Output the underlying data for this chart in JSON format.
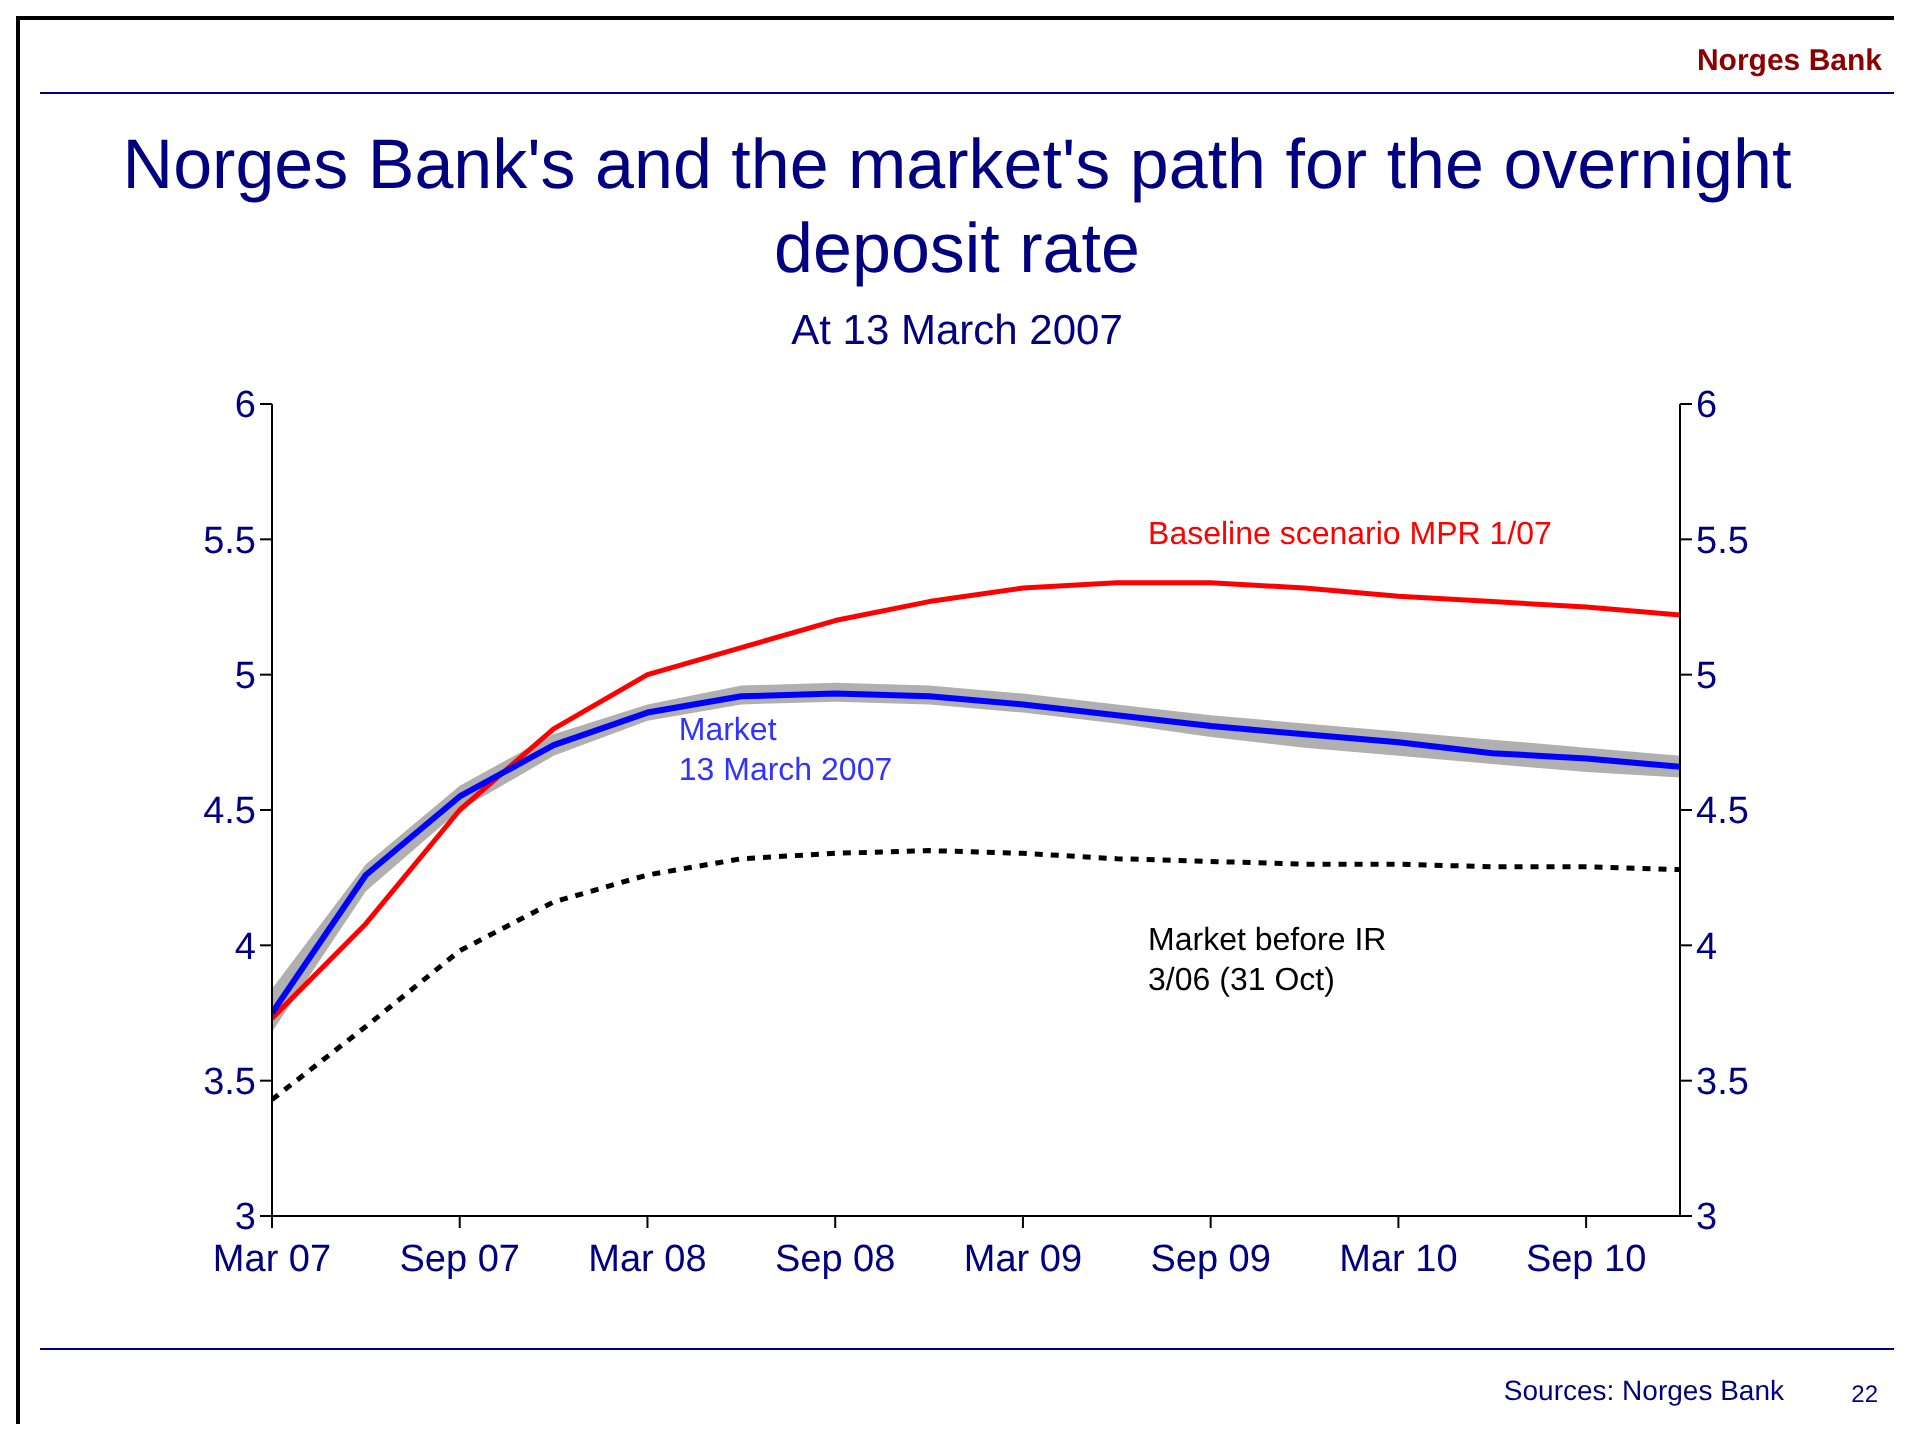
{
  "chart_data": {
    "type": "line",
    "title": "Norges Bank's and the market's path for the overnight deposit rate",
    "subtitle": "At 13 March 2007",
    "annotations": [
      "Norges Bank",
      "Sources: Norges Bank",
      "22"
    ],
    "x": [
      "2007-03",
      "2007-06",
      "2007-09",
      "2007-12",
      "2008-03",
      "2008-06",
      "2008-09",
      "2008-12",
      "2009-03",
      "2009-06",
      "2009-09",
      "2009-12",
      "2010-03",
      "2010-06",
      "2010-09",
      "2010-12"
    ],
    "series": [
      {
        "name": "Baseline scenario MPR 1/07",
        "color": "#ff0000",
        "line_style": "solid",
        "values": [
          3.73,
          4.08,
          4.5,
          4.8,
          5.0,
          5.1,
          5.2,
          5.27,
          5.32,
          5.34,
          5.34,
          5.32,
          5.29,
          5.27,
          5.25,
          5.22
        ]
      },
      {
        "name": "Market\n13 March 2007",
        "color": "#0000ff",
        "line_style": "solid",
        "values": [
          3.75,
          4.26,
          4.55,
          4.74,
          4.86,
          4.92,
          4.93,
          4.92,
          4.89,
          4.85,
          4.81,
          4.78,
          4.75,
          4.71,
          4.69,
          4.66
        ],
        "lower": [
          3.68,
          4.2,
          4.5,
          4.7,
          4.83,
          4.89,
          4.9,
          4.89,
          4.86,
          4.82,
          4.77,
          4.73,
          4.7,
          4.67,
          4.64,
          4.62
        ],
        "upper": [
          3.84,
          4.3,
          4.59,
          4.78,
          4.89,
          4.96,
          4.97,
          4.96,
          4.93,
          4.89,
          4.85,
          4.82,
          4.79,
          4.76,
          4.73,
          4.7
        ]
      },
      {
        "name": "Market before IR\n3/06 (31 Oct)",
        "color": "#000000",
        "line_style": "dashed",
        "values": [
          3.43,
          3.7,
          3.98,
          4.16,
          4.26,
          4.32,
          4.34,
          4.35,
          4.34,
          4.32,
          4.31,
          4.3,
          4.3,
          4.29,
          4.29,
          4.28
        ]
      }
    ],
    "xlim": [
      "2007-03",
      "2010-12"
    ],
    "xticks": [
      {
        "value": "2007-03",
        "label": "Mar 07"
      },
      {
        "value": "2007-09",
        "label": "Sep 07"
      },
      {
        "value": "2008-03",
        "label": "Mar 08"
      },
      {
        "value": "2008-09",
        "label": "Sep 08"
      },
      {
        "value": "2009-03",
        "label": "Mar 09"
      },
      {
        "value": "2009-09",
        "label": "Sep 09"
      },
      {
        "value": "2010-03",
        "label": "Mar 10"
      },
      {
        "value": "2010-09",
        "label": "Sep 10"
      }
    ],
    "ylim": [
      3,
      6
    ],
    "yticks": [
      3,
      3.5,
      4,
      4.5,
      5,
      5.5,
      6
    ],
    "y2lim": [
      3,
      6
    ],
    "y2ticks": [
      3,
      3.5,
      4,
      4.5,
      5,
      5.5,
      6
    ],
    "marker": "none"
  }
}
